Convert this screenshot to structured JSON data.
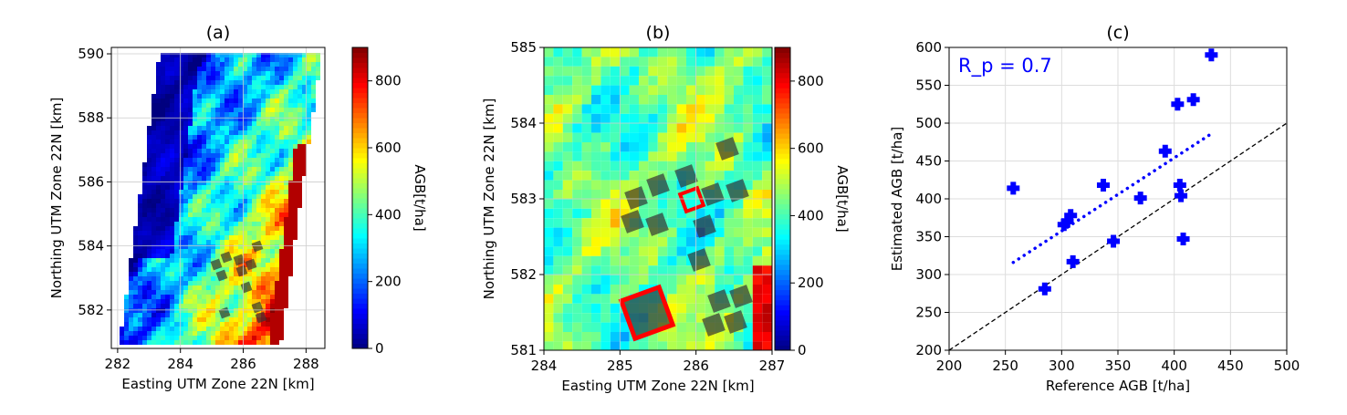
{
  "chart_data": [
    {
      "type": "heatmap",
      "title": "(a)",
      "xlabel": "Easting UTM Zone 22N [km]",
      "ylabel": "Northing UTM Zone 22N [km]",
      "xlim": [
        281.8,
        288.6
      ],
      "ylim": [
        580.8,
        590.2
      ],
      "xticks": [
        "282",
        "284",
        "286",
        "288"
      ],
      "yticks": [
        "582",
        "584",
        "586",
        "588",
        "590"
      ],
      "colorbar": {
        "label": "AGB[t/ha]",
        "range": [
          0,
          900
        ],
        "ticks": [
          "0",
          "200",
          "400",
          "600",
          "800"
        ]
      },
      "colormap": "jet"
    },
    {
      "type": "heatmap",
      "title": "(b)",
      "xlabel": "Easting UTM Zone 22N [km]",
      "ylabel": "Northing UTM Zone 22N [km]",
      "xlim": [
        284,
        287
      ],
      "ylim": [
        581,
        585
      ],
      "xticks": [
        "284",
        "285",
        "286",
        "287"
      ],
      "yticks": [
        "581",
        "582",
        "583",
        "584",
        "585"
      ],
      "colorbar": {
        "label": "AGB[t/ha]",
        "range": [
          0,
          900
        ],
        "ticks": [
          "0",
          "200",
          "400",
          "600",
          "800"
        ]
      },
      "colormap": "jet"
    },
    {
      "type": "scatter",
      "title": "(c)",
      "xlabel": "Reference AGB [t/ha]",
      "ylabel": "Estimated AGB [t/ha]",
      "xlim": [
        200,
        500
      ],
      "ylim": [
        200,
        600
      ],
      "xticks": [
        "200",
        "250",
        "300",
        "350",
        "400",
        "450",
        "500"
      ],
      "yticks": [
        "200",
        "250",
        "300",
        "350",
        "400",
        "450",
        "500",
        "550",
        "600"
      ],
      "annotation": "R_p = 0.7",
      "annotation_main": "R",
      "annotation_sub": "p",
      "annotation_rest": " = 0.7",
      "points": [
        [
          257,
          414
        ],
        [
          285,
          281
        ],
        [
          302,
          366
        ],
        [
          305,
          370
        ],
        [
          308,
          378
        ],
        [
          310,
          317
        ],
        [
          337,
          418
        ],
        [
          346,
          344
        ],
        [
          370,
          401
        ],
        [
          392,
          463
        ],
        [
          403,
          525
        ],
        [
          417,
          531
        ],
        [
          433,
          590
        ],
        [
          405,
          418
        ],
        [
          406,
          404
        ],
        [
          408,
          347
        ]
      ],
      "trend": [
        [
          257,
          316
        ],
        [
          432,
          485
        ]
      ],
      "identity": [
        [
          200,
          200
        ],
        [
          500,
          500
        ]
      ],
      "color": "#0000ff",
      "grid": true
    }
  ]
}
